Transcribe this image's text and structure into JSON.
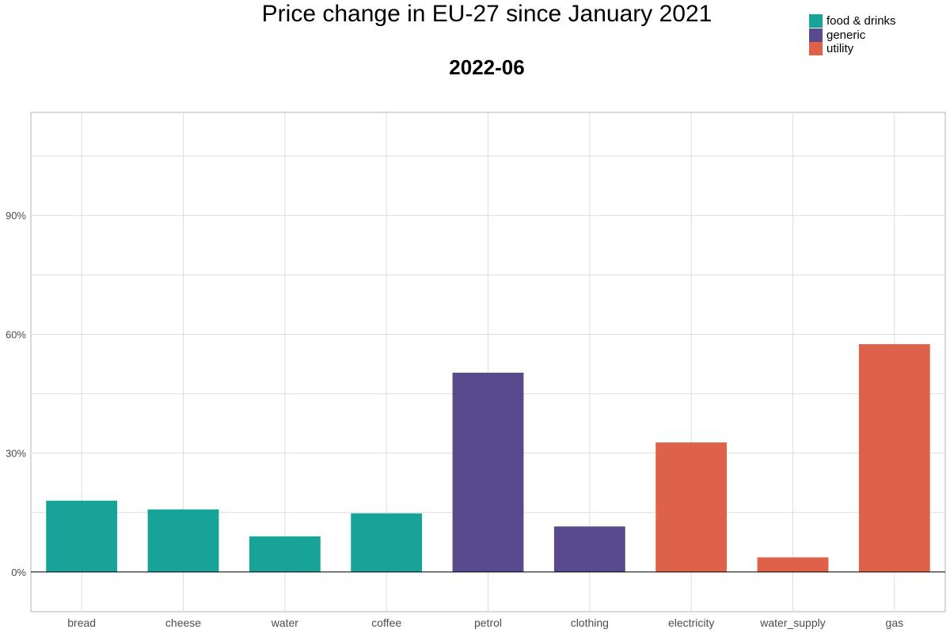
{
  "chart_data": {
    "type": "bar",
    "title": "Price change in EU-27 since January 2021",
    "subtitle": "2022-06",
    "xlabel": "",
    "ylabel": "",
    "ylim": [
      -10,
      116
    ],
    "yticks": [
      0,
      30,
      60,
      90
    ],
    "ytick_labels": [
      "0%",
      "30%",
      "60%",
      "90%"
    ],
    "grid": true,
    "legend_position": "top-right",
    "categories": [
      "bread",
      "cheese",
      "water",
      "coffee",
      "petrol",
      "clothing",
      "electricity",
      "water_supply",
      "gas"
    ],
    "values": [
      18,
      15.8,
      9,
      14.8,
      50.3,
      11.5,
      32.7,
      3.7,
      57.5
    ],
    "groups": [
      "food & drinks",
      "food & drinks",
      "food & drinks",
      "food & drinks",
      "generic",
      "generic",
      "utility",
      "utility",
      "utility"
    ],
    "legend": [
      {
        "name": "food & drinks",
        "color": "#17a398"
      },
      {
        "name": "generic",
        "color": "#594a8e"
      },
      {
        "name": "utility",
        "color": "#de614a"
      }
    ]
  }
}
